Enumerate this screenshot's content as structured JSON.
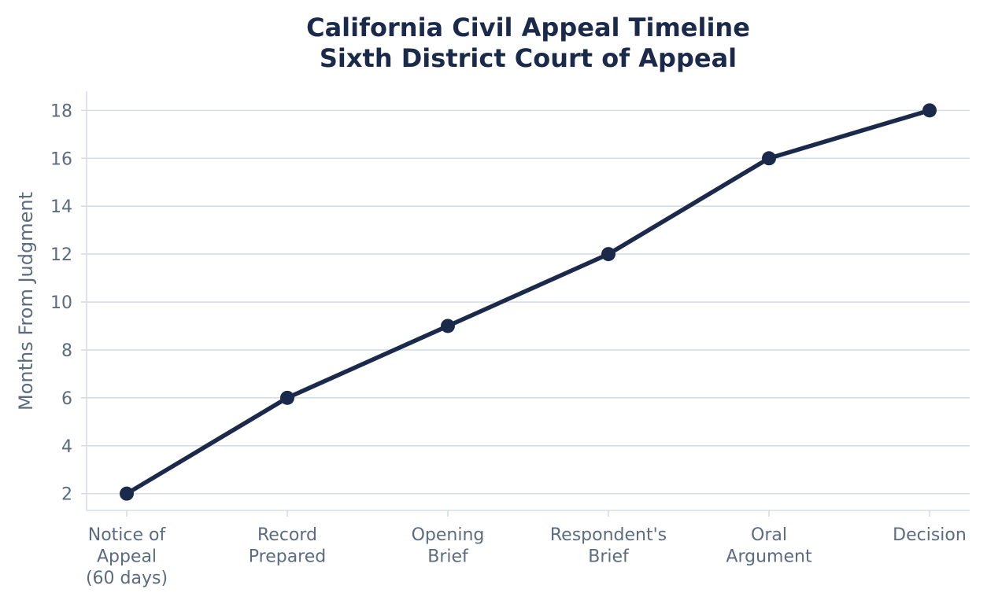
{
  "chart_data": {
    "type": "line",
    "title": "California Civil Appeal Timeline",
    "subtitle": "Sixth District Court of Appeal",
    "xlabel": "",
    "ylabel": "Months From Judgment",
    "categories": [
      [
        "Notice of",
        "Appeal",
        "(60 days)"
      ],
      [
        "Record",
        "Prepared"
      ],
      [
        "Opening",
        "Brief"
      ],
      [
        "Respondent's",
        "Brief"
      ],
      [
        "Oral",
        "Argument"
      ],
      [
        "Decision"
      ]
    ],
    "series": [
      {
        "values": [
          2,
          6,
          9,
          12,
          16,
          18
        ]
      }
    ],
    "ylim": [
      1.3,
      18.8
    ],
    "yticks": [
      2,
      4,
      6,
      8,
      10,
      12,
      14,
      16,
      18
    ],
    "grid": "horizontal",
    "colors": {
      "line": "#1b2a4a",
      "grid": "#d4dde9",
      "axis": "#d4dde9",
      "text": "#5b6b80",
      "title": "#1b2a4a"
    }
  }
}
